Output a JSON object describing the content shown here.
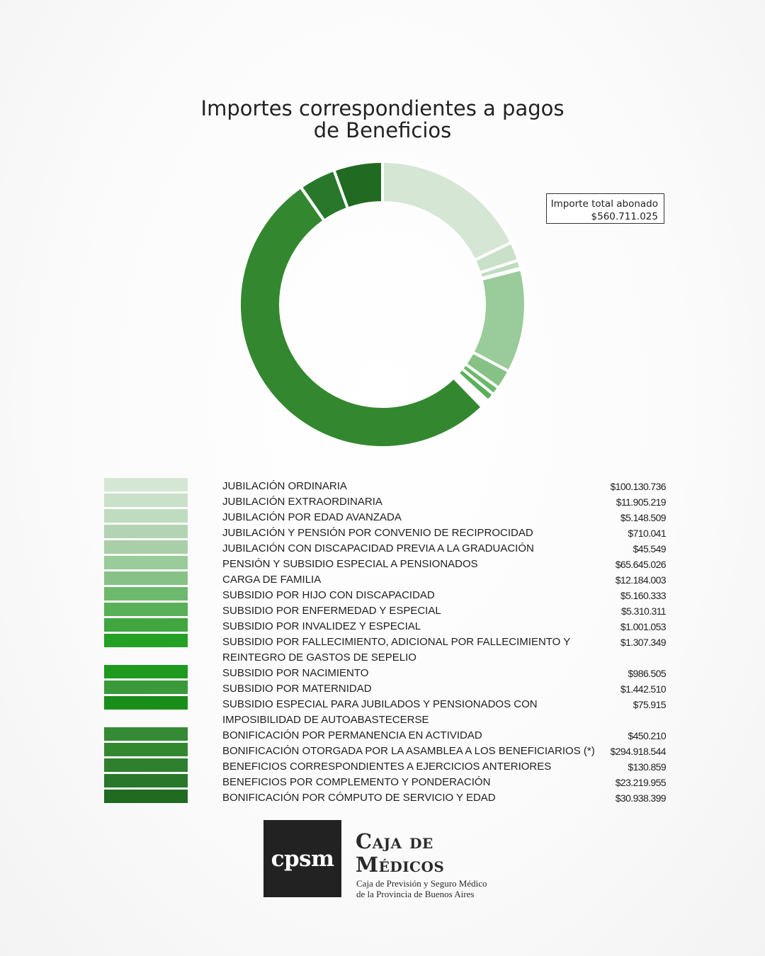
{
  "chart_data": {
    "type": "pie",
    "donut": true,
    "title": [
      "Importes correspondientes a pagos",
      "de Beneficios"
    ],
    "total_label": "Importe total abonado",
    "total_value": "$560.711.025",
    "slices": [
      {
        "label": "JUBILACIÓN ORDINARIA",
        "value": 100130736,
        "display": "$100.130.736",
        "color": "#d5e6d5"
      },
      {
        "label": "JUBILACIÓN EXTRAORDINARIA",
        "value": 11905219,
        "display": "$11.905.219",
        "color": "#c9e0c9"
      },
      {
        "label": "JUBILACIÓN POR EDAD AVANZADA",
        "value": 5148509,
        "display": "$5.148.509",
        "color": "#bfdcbf"
      },
      {
        "label": "JUBILACIÓN Y PENSIÓN POR CONVENIO DE RECIPROCIDAD",
        "value": 710041,
        "display": "$710.041",
        "color": "#b3d4b3"
      },
      {
        "label": "JUBILACIÓN CON DISCAPACIDAD PREVIA A LA GRADUACIÓN",
        "value": 45549,
        "display": "$45.549",
        "color": "#a8cfa8"
      },
      {
        "label": "PENSIÓN Y SUBSIDIO ESPECIAL A PENSIONADOS",
        "value": 65645026,
        "display": "$65.645.026",
        "color": "#9acb9a"
      },
      {
        "label": "CARGA DE FAMILIA",
        "value": 12184003,
        "display": "$12.184.003",
        "color": "#86c286"
      },
      {
        "label": "SUBSIDIO POR HIJO CON DISCAPACIDAD",
        "value": 5160333,
        "display": "$5.160.333",
        "color": "#6db96d"
      },
      {
        "label": "SUBSIDIO POR ENFERMEDAD Y ESPECIAL",
        "value": 5310311,
        "display": "$5.310.311",
        "color": "#58b058"
      },
      {
        "label": "SUBSIDIO POR INVALIDEZ Y ESPECIAL",
        "value": 1001053,
        "display": "$1.001.053",
        "color": "#40a640"
      },
      {
        "label": "SUBSIDIO POR FALLECIMIENTO, ADICIONAL POR FALLECIMIENTO Y REINTEGRO DE GASTOS DE SEPELIO",
        "value": 1307349,
        "display": "$1.307.349",
        "color": "#24a024"
      },
      {
        "label": "SUBSIDIO POR NACIMIENTO",
        "value": 986505,
        "display": "$986.505",
        "color": "#1e9a1e"
      },
      {
        "label": "SUBSIDIO POR MATERNIDAD",
        "value": 1442510,
        "display": "$1.442.510",
        "color": "#3a9a3a"
      },
      {
        "label": "SUBSIDIO ESPECIAL PARA JUBILADOS Y PENSIONADOS CON IMPOSIBILIDAD DE AUTOABASTECERSE",
        "value": 75915,
        "display": "$75.915",
        "color": "#1a8e1a"
      },
      {
        "label": "BONIFICACIÓN POR PERMANENCIA EN ACTIVIDAD",
        "value": 450210,
        "display": "$450.210",
        "color": "#358a35"
      },
      {
        "label": "BONIFICACIÓN OTORGADA POR LA ASAMBLEA A LOS BENEFICIARIOS (*)",
        "value": 294918544,
        "display": "$294.918.544",
        "color": "#33882f"
      },
      {
        "label": "BENEFICIOS CORRESPONDIENTES A EJERCICIOS ANTERIORES",
        "value": 130859,
        "display": "$130.859",
        "color": "#2e7f2e"
      },
      {
        "label": "BENEFICIOS POR COMPLEMENTO Y PONDERACIÓN",
        "value": 23219955,
        "display": "$23.219.955",
        "color": "#28772a"
      },
      {
        "label": "BONIFICACIÓN POR CÓMPUTO DE SERVICIO Y EDAD",
        "value": 30938399,
        "display": "$30.938.399",
        "color": "#216a21"
      }
    ]
  },
  "logo": {
    "mark": "cpsm",
    "name_line1": "Caja de",
    "name_line2": "Médicos",
    "sub_line1": "Caja de Previsión y Seguro Médico",
    "sub_line2": "de la Provincia de Buenos Aires"
  }
}
